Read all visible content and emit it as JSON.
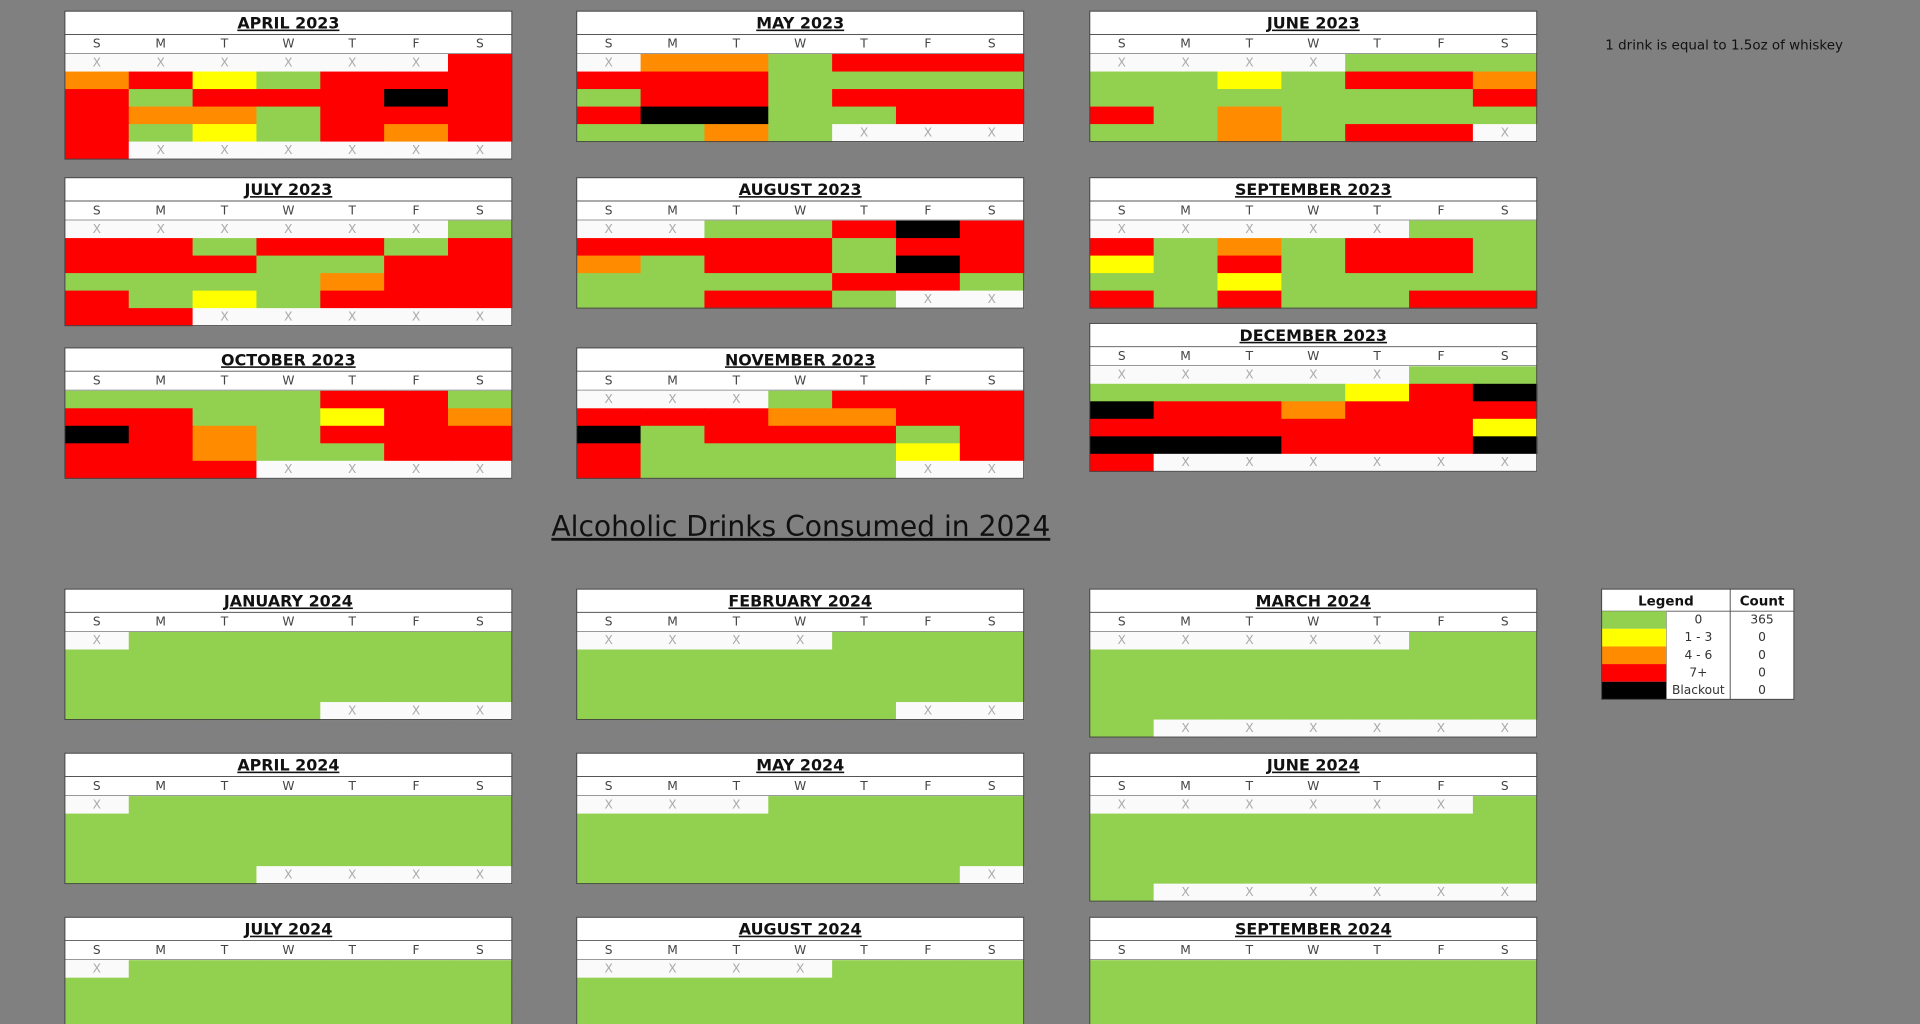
{
  "note": "1 drink is equal to 1.5oz of whiskey",
  "title": "Alcoholic Drinks Consumed in 2024",
  "weekdays": [
    "S",
    "M",
    "T",
    "W",
    "T",
    "F",
    "S"
  ],
  "months": [
    {
      "title": "APRIL 2023",
      "weeks": [
        [
          "X",
          "X",
          "X",
          "X",
          "X",
          "X",
          3
        ],
        [
          2,
          3,
          1,
          0,
          3,
          3,
          3
        ],
        [
          3,
          0,
          3,
          3,
          3,
          4,
          3
        ],
        [
          3,
          2,
          2,
          0,
          3,
          3,
          3
        ],
        [
          3,
          0,
          1,
          0,
          3,
          2,
          3
        ],
        [
          3,
          "X",
          "X",
          "X",
          "X",
          "X",
          "X"
        ]
      ]
    },
    {
      "title": "MAY 2023",
      "weeks": [
        [
          "X",
          2,
          2,
          0,
          3,
          3,
          3
        ],
        [
          3,
          3,
          3,
          0,
          0,
          0,
          0
        ],
        [
          0,
          3,
          3,
          0,
          3,
          3,
          3
        ],
        [
          3,
          4,
          4,
          0,
          0,
          3,
          3
        ],
        [
          0,
          0,
          2,
          0,
          "X",
          "X",
          "X"
        ]
      ]
    },
    {
      "title": "JUNE 2023",
      "weeks": [
        [
          "X",
          "X",
          "X",
          "X",
          0,
          0,
          0
        ],
        [
          0,
          0,
          1,
          0,
          3,
          3,
          2
        ],
        [
          0,
          0,
          0,
          0,
          0,
          0,
          3
        ],
        [
          3,
          0,
          2,
          0,
          0,
          0,
          0
        ],
        [
          0,
          0,
          2,
          0,
          3,
          3,
          "X"
        ]
      ]
    },
    {
      "title": "JULY 2023",
      "weeks": [
        [
          "X",
          "X",
          "X",
          "X",
          "X",
          "X",
          0
        ],
        [
          3,
          3,
          0,
          3,
          3,
          0,
          3
        ],
        [
          3,
          3,
          3,
          0,
          0,
          3,
          3
        ],
        [
          0,
          0,
          0,
          0,
          2,
          3,
          3
        ],
        [
          3,
          0,
          1,
          0,
          3,
          3,
          3
        ],
        [
          3,
          3,
          "X",
          "X",
          "X",
          "X",
          "X"
        ]
      ]
    },
    {
      "title": "AUGUST 2023",
      "weeks": [
        [
          "X",
          "X",
          0,
          0,
          3,
          4,
          3
        ],
        [
          3,
          3,
          3,
          3,
          0,
          3,
          3
        ],
        [
          2,
          0,
          3,
          3,
          0,
          4,
          3
        ],
        [
          0,
          0,
          0,
          0,
          3,
          3,
          0
        ],
        [
          0,
          0,
          3,
          3,
          0,
          "X",
          "X"
        ]
      ]
    },
    {
      "title": "SEPTEMBER 2023",
      "weeks": [
        [
          "X",
          "X",
          "X",
          "X",
          "X",
          0,
          0
        ],
        [
          3,
          0,
          2,
          0,
          3,
          3,
          0
        ],
        [
          1,
          0,
          3,
          0,
          3,
          3,
          0
        ],
        [
          0,
          0,
          1,
          0,
          0,
          0,
          0
        ],
        [
          3,
          0,
          3,
          0,
          0,
          3,
          3
        ]
      ]
    },
    {
      "title": "OCTOBER 2023",
      "weeks": [
        [
          0,
          0,
          0,
          0,
          3,
          3,
          0
        ],
        [
          3,
          3,
          0,
          0,
          1,
          3,
          2
        ],
        [
          4,
          3,
          2,
          0,
          3,
          3,
          3
        ],
        [
          3,
          3,
          2,
          0,
          0,
          3,
          3
        ],
        [
          3,
          3,
          3,
          "X",
          "X",
          "X",
          "X"
        ]
      ]
    },
    {
      "title": "NOVEMBER 2023",
      "weeks": [
        [
          "X",
          "X",
          "X",
          0,
          3,
          3,
          3
        ],
        [
          3,
          3,
          3,
          2,
          2,
          3,
          3
        ],
        [
          4,
          0,
          3,
          3,
          3,
          0,
          3
        ],
        [
          3,
          0,
          0,
          0,
          0,
          1,
          3
        ],
        [
          3,
          0,
          0,
          0,
          0,
          "X",
          "X"
        ]
      ]
    },
    {
      "title": "DECEMBER 2023",
      "weeks": [
        [
          "X",
          "X",
          "X",
          "X",
          "X",
          0,
          0
        ],
        [
          0,
          0,
          0,
          0,
          1,
          3,
          4
        ],
        [
          4,
          3,
          3,
          2,
          3,
          3,
          3
        ],
        [
          3,
          3,
          3,
          3,
          3,
          3,
          1
        ],
        [
          4,
          4,
          4,
          3,
          3,
          3,
          4
        ],
        [
          3,
          "X",
          "X",
          "X",
          "X",
          "X",
          "X"
        ]
      ]
    },
    {
      "title": "JANUARY 2024",
      "weeks": [
        [
          "X",
          0,
          0,
          0,
          0,
          0,
          0
        ],
        [
          0,
          0,
          0,
          0,
          0,
          0,
          0
        ],
        [
          0,
          0,
          0,
          0,
          0,
          0,
          0
        ],
        [
          0,
          0,
          0,
          0,
          0,
          0,
          0
        ],
        [
          0,
          0,
          0,
          0,
          "X",
          "X",
          "X"
        ]
      ]
    },
    {
      "title": "FEBRUARY 2024",
      "weeks": [
        [
          "X",
          "X",
          "X",
          "X",
          0,
          0,
          0
        ],
        [
          0,
          0,
          0,
          0,
          0,
          0,
          0
        ],
        [
          0,
          0,
          0,
          0,
          0,
          0,
          0
        ],
        [
          0,
          0,
          0,
          0,
          0,
          0,
          0
        ],
        [
          0,
          0,
          0,
          0,
          0,
          "X",
          "X"
        ]
      ]
    },
    {
      "title": "MARCH 2024",
      "weeks": [
        [
          "X",
          "X",
          "X",
          "X",
          "X",
          0,
          0
        ],
        [
          0,
          0,
          0,
          0,
          0,
          0,
          0
        ],
        [
          0,
          0,
          0,
          0,
          0,
          0,
          0
        ],
        [
          0,
          0,
          0,
          0,
          0,
          0,
          0
        ],
        [
          0,
          0,
          0,
          0,
          0,
          0,
          0
        ],
        [
          0,
          "X",
          "X",
          "X",
          "X",
          "X",
          "X"
        ]
      ]
    },
    {
      "title": "APRIL 2024",
      "weeks": [
        [
          "X",
          0,
          0,
          0,
          0,
          0,
          0
        ],
        [
          0,
          0,
          0,
          0,
          0,
          0,
          0
        ],
        [
          0,
          0,
          0,
          0,
          0,
          0,
          0
        ],
        [
          0,
          0,
          0,
          0,
          0,
          0,
          0
        ],
        [
          0,
          0,
          0,
          "X",
          "X",
          "X",
          "X"
        ]
      ]
    },
    {
      "title": "MAY 2024",
      "weeks": [
        [
          "X",
          "X",
          "X",
          0,
          0,
          0,
          0
        ],
        [
          0,
          0,
          0,
          0,
          0,
          0,
          0
        ],
        [
          0,
          0,
          0,
          0,
          0,
          0,
          0
        ],
        [
          0,
          0,
          0,
          0,
          0,
          0,
          0
        ],
        [
          0,
          0,
          0,
          0,
          0,
          0,
          "X"
        ]
      ]
    },
    {
      "title": "JUNE 2024",
      "weeks": [
        [
          "X",
          "X",
          "X",
          "X",
          "X",
          "X",
          0
        ],
        [
          0,
          0,
          0,
          0,
          0,
          0,
          0
        ],
        [
          0,
          0,
          0,
          0,
          0,
          0,
          0
        ],
        [
          0,
          0,
          0,
          0,
          0,
          0,
          0
        ],
        [
          0,
          0,
          0,
          0,
          0,
          0,
          0
        ],
        [
          0,
          "X",
          "X",
          "X",
          "X",
          "X",
          "X"
        ]
      ]
    },
    {
      "title": "JULY 2024",
      "weeks": [
        [
          "X",
          0,
          0,
          0,
          0,
          0,
          0
        ],
        [
          0,
          0,
          0,
          0,
          0,
          0,
          0
        ],
        [
          0,
          0,
          0,
          0,
          0,
          0,
          0
        ],
        [
          0,
          0,
          0,
          0,
          0,
          0,
          0
        ]
      ]
    },
    {
      "title": "AUGUST 2024",
      "weeks": [
        [
          "X",
          "X",
          "X",
          "X",
          0,
          0,
          0
        ],
        [
          0,
          0,
          0,
          0,
          0,
          0,
          0
        ],
        [
          0,
          0,
          0,
          0,
          0,
          0,
          0
        ],
        [
          0,
          0,
          0,
          0,
          0,
          0,
          0
        ]
      ]
    },
    {
      "title": "SEPTEMBER 2024",
      "weeks": [
        [
          0,
          0,
          0,
          0,
          0,
          0,
          0
        ],
        [
          0,
          0,
          0,
          0,
          0,
          0,
          0
        ],
        [
          0,
          0,
          0,
          0,
          0,
          0,
          0
        ],
        [
          0,
          0,
          0,
          0,
          0,
          0,
          0
        ]
      ]
    }
  ],
  "legend": {
    "header": [
      "Legend",
      "Count"
    ],
    "rows": [
      {
        "label": "0",
        "count": 365,
        "color": "#92d050"
      },
      {
        "label": "1 - 3",
        "count": 0,
        "color": "#ffff00"
      },
      {
        "label": "4 - 6",
        "count": 0,
        "color": "#ff8c00"
      },
      {
        "label": "7+",
        "count": 0,
        "color": "#ff0000"
      },
      {
        "label": "Blackout",
        "count": 0,
        "color": "#000000"
      }
    ]
  }
}
